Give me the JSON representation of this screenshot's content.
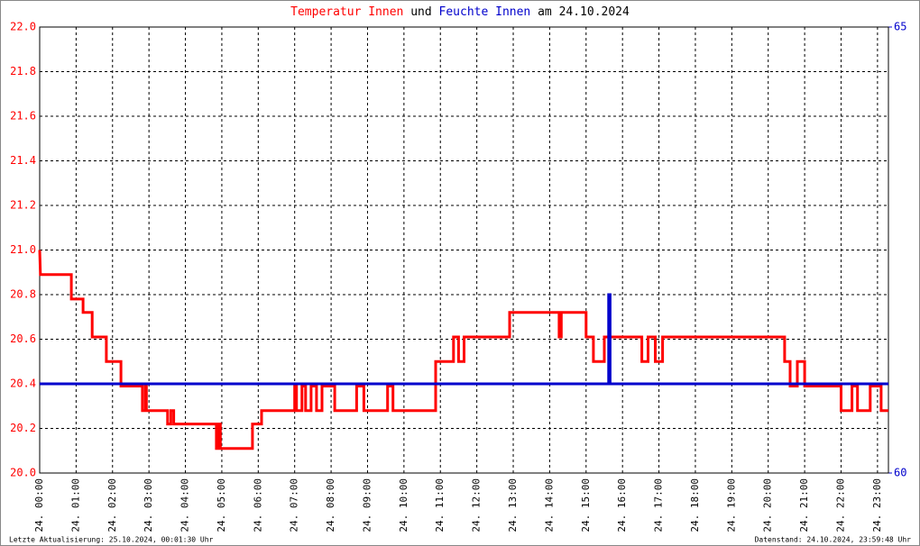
{
  "chart_data": {
    "type": "line",
    "title_parts": [
      {
        "text": "Temperatur Innen",
        "color": "#ff0000"
      },
      {
        "text": "und",
        "color": "#000000"
      },
      {
        "text": "Feuchte Innen",
        "color": "#0000cc"
      },
      {
        "text": "am 24.10.2024",
        "color": "#000000"
      }
    ],
    "footer_left": "Letzte Aktualisierung: 25.10.2024, 00:01:30 Uhr",
    "footer_right": "Datenstand: 24.10.2024, 23:59:48 Uhr",
    "grid": true,
    "xlim": [
      0,
      23.3
    ],
    "xticks": [
      {
        "value": 0,
        "label": "24. 00:00"
      },
      {
        "value": 1,
        "label": "24. 01:00"
      },
      {
        "value": 2,
        "label": "24. 02:00"
      },
      {
        "value": 3,
        "label": "24. 03:00"
      },
      {
        "value": 4,
        "label": "24. 04:00"
      },
      {
        "value": 5,
        "label": "24. 05:00"
      },
      {
        "value": 6,
        "label": "24. 06:00"
      },
      {
        "value": 7,
        "label": "24. 07:00"
      },
      {
        "value": 8,
        "label": "24. 08:00"
      },
      {
        "value": 9,
        "label": "24. 09:00"
      },
      {
        "value": 10,
        "label": "24. 10:00"
      },
      {
        "value": 11,
        "label": "24. 11:00"
      },
      {
        "value": 12,
        "label": "24. 12:00"
      },
      {
        "value": 13,
        "label": "24. 13:00"
      },
      {
        "value": 14,
        "label": "24. 14:00"
      },
      {
        "value": 15,
        "label": "24. 15:00"
      },
      {
        "value": 16,
        "label": "24. 16:00"
      },
      {
        "value": 17,
        "label": "24. 17:00"
      },
      {
        "value": 18,
        "label": "24. 18:00"
      },
      {
        "value": 19,
        "label": "24. 19:00"
      },
      {
        "value": 20,
        "label": "24. 20:00"
      },
      {
        "value": 21,
        "label": "24. 21:00"
      },
      {
        "value": 22,
        "label": "24. 22:00"
      },
      {
        "value": 23,
        "label": "24. 23:00"
      }
    ],
    "ylim": [
      20,
      22
    ],
    "yticks": [
      {
        "value": 20,
        "label": "20.0"
      },
      20.2,
      20.4,
      20.6,
      20.8,
      {
        "value": 21,
        "label": "21.0"
      },
      21.2,
      21.4,
      21.6,
      21.8,
      {
        "value": 22,
        "label": "22.0"
      }
    ],
    "y2lim": [
      60,
      65
    ],
    "y2ticks": [
      60,
      65
    ],
    "series": [
      {
        "name": "Temperatur Innen",
        "color": "#ff0000",
        "x": [
          0,
          0.02,
          0.87,
          0.87,
          1.19,
          1.19,
          1.44,
          1.44,
          1.83,
          1.83,
          2.23,
          2.23,
          2.82,
          2.82,
          2.9,
          2.9,
          2.93,
          2.93,
          3.51,
          3.51,
          3.6,
          3.6,
          3.68,
          3.68,
          4.85,
          4.85,
          4.9,
          4.9,
          4.96,
          4.96,
          5.84,
          5.84,
          6.09,
          6.09,
          7.0,
          7.0,
          7.05,
          7.05,
          7.2,
          7.2,
          7.3,
          7.3,
          7.45,
          7.45,
          7.6,
          7.6,
          7.75,
          7.75,
          8.1,
          8.1,
          8.7,
          8.7,
          8.9,
          8.9,
          9.55,
          9.55,
          9.7,
          9.7,
          10.87,
          10.87,
          11.36,
          11.36,
          11.5,
          11.5,
          11.65,
          11.65,
          12.9,
          12.9,
          14.26,
          14.26,
          14.32,
          14.32,
          15.0,
          15.0,
          15.2,
          15.2,
          15.5,
          15.5,
          16.53,
          16.53,
          16.7,
          16.7,
          16.9,
          16.9,
          17.1,
          17.1,
          20.45,
          20.45,
          20.6,
          20.6,
          20.8,
          20.8,
          21.0,
          21.0,
          21.9,
          21.9,
          22.0,
          22.0,
          22.3,
          22.3,
          22.45,
          22.45,
          22.8,
          22.8,
          23.1,
          23.1,
          23.3
        ],
        "values": [
          21.0,
          20.89,
          20.89,
          20.78,
          20.78,
          20.72,
          20.72,
          20.61,
          20.61,
          20.5,
          20.5,
          20.39,
          20.39,
          20.28,
          20.28,
          20.39,
          20.39,
          20.28,
          20.28,
          20.22,
          20.22,
          20.28,
          20.28,
          20.22,
          20.22,
          20.11,
          20.11,
          20.22,
          20.22,
          20.11,
          20.11,
          20.22,
          20.22,
          20.28,
          20.28,
          20.39,
          20.39,
          20.28,
          20.28,
          20.39,
          20.39,
          20.28,
          20.28,
          20.39,
          20.39,
          20.28,
          20.28,
          20.39,
          20.39,
          20.28,
          20.28,
          20.39,
          20.39,
          20.28,
          20.28,
          20.39,
          20.39,
          20.28,
          20.28,
          20.5,
          20.5,
          20.61,
          20.61,
          20.5,
          20.5,
          20.61,
          20.61,
          20.72,
          20.72,
          20.61,
          20.61,
          20.72,
          20.72,
          20.61,
          20.61,
          20.5,
          20.5,
          20.61,
          20.61,
          20.5,
          20.5,
          20.61,
          20.61,
          20.5,
          20.5,
          20.61,
          20.61,
          20.5,
          20.5,
          20.39,
          20.39,
          20.5,
          20.5,
          20.39,
          20.39,
          20.39,
          20.39,
          20.28,
          20.28,
          20.39,
          20.39,
          20.28,
          20.28,
          20.39,
          20.39,
          20.28,
          20.28
        ]
      },
      {
        "name": "Feuchte Innen",
        "color": "#0000cc",
        "axis": "y2",
        "x": [
          0,
          15.62,
          15.62,
          15.66,
          15.66,
          23.3
        ],
        "values": [
          61,
          61,
          62,
          62,
          61,
          61
        ]
      }
    ]
  }
}
